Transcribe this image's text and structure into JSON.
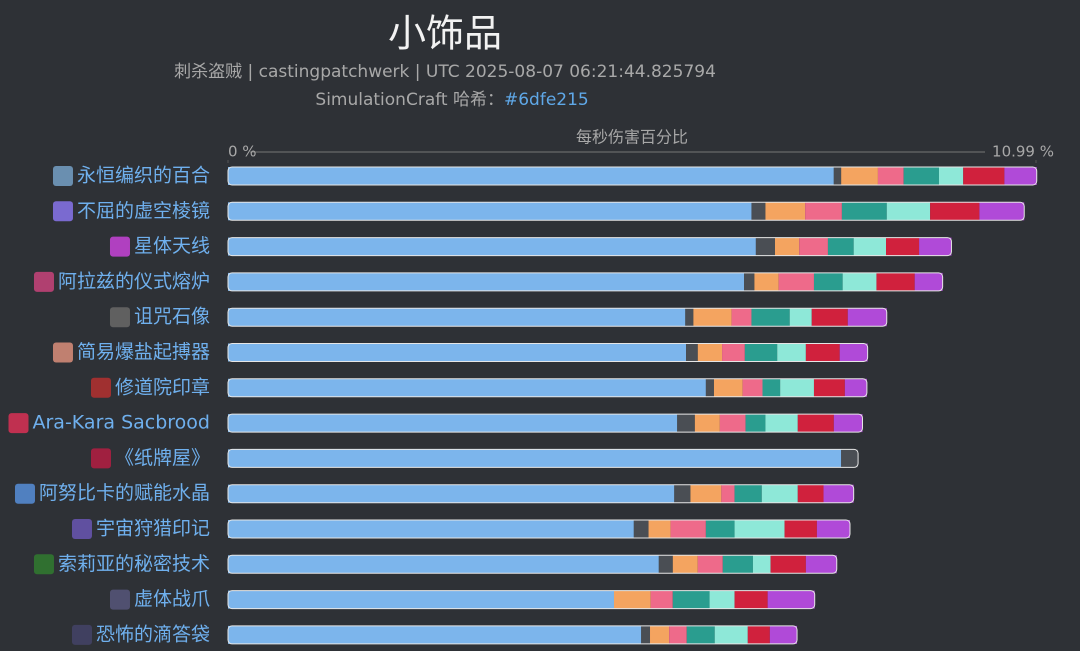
{
  "chart_data": {
    "type": "stacked_barh",
    "title": "小饰品",
    "subtitle": "刺杀盗贼 | castingpatchwerk | UTC 2025-08-07 06:21:44.825794",
    "hash_label": "SimulationCraft 哈希：",
    "hash": "#6dfe215",
    "xlabel": "每秒伤害百分比",
    "xlim": [
      0,
      10.99
    ],
    "xticks": [
      {
        "value": 0,
        "label": "0 %"
      },
      {
        "value": 10.99,
        "label": "10.99 %"
      }
    ],
    "categories": [
      "永恒编织的百合",
      "不屈的虚空棱镜",
      "星体天线",
      "阿拉兹的仪式熔炉",
      "诅咒石像",
      "简易爆盐起搏器",
      "修道院印章",
      "Ara-Kara Sacbrood",
      "《纸牌屋》",
      "阿努比卡的赋能水晶",
      "宇宙狩猎印记",
      "索莉亚的秘密技术",
      "虚体战爪",
      "恐怖的滴答袋"
    ],
    "series": [
      {
        "color": "#7cb5ec",
        "values": [
          8.24,
          7.12,
          7.18,
          7.02,
          6.22,
          6.23,
          6.5,
          6.11,
          8.34,
          6.07,
          5.52,
          5.86,
          5.25,
          5.62
        ]
      },
      {
        "color": "#4a4e54",
        "values": [
          0.1,
          0.19,
          0.26,
          0.14,
          0.11,
          0.16,
          0.11,
          0.24,
          0.23,
          0.22,
          0.2,
          0.19,
          0,
          0.12
        ]
      },
      {
        "color": "#f4a460",
        "values": [
          0.5,
          0.54,
          0.33,
          0.33,
          0.52,
          0.33,
          0.39,
          0.34,
          0,
          0.42,
          0.3,
          0.34,
          0.5,
          0.26
        ]
      },
      {
        "color": "#ee6a8a",
        "values": [
          0.35,
          0.5,
          0.39,
          0.48,
          0.27,
          0.31,
          0.27,
          0.35,
          0,
          0.18,
          0.48,
          0.34,
          0.3,
          0.24
        ]
      },
      {
        "color": "#2a9d8f",
        "values": [
          0.48,
          0.61,
          0.35,
          0.39,
          0.52,
          0.44,
          0.24,
          0.27,
          0,
          0.37,
          0.39,
          0.41,
          0.5,
          0.38
        ]
      },
      {
        "color": "#8ee8d8",
        "values": [
          0.33,
          0.59,
          0.44,
          0.46,
          0.3,
          0.39,
          0.46,
          0.44,
          0,
          0.49,
          0.68,
          0.24,
          0.34,
          0.45
        ]
      },
      {
        "color": "#d0213d",
        "values": [
          0.56,
          0.67,
          0.45,
          0.52,
          0.49,
          0.46,
          0.42,
          0.49,
          0,
          0.35,
          0.44,
          0.48,
          0.45,
          0.3
        ]
      },
      {
        "color": "#b04ad8",
        "values": [
          0.44,
          0.61,
          0.44,
          0.38,
          0.53,
          0.38,
          0.3,
          0.39,
          0,
          0.41,
          0.45,
          0.42,
          0.64,
          0.37
        ]
      }
    ]
  }
}
